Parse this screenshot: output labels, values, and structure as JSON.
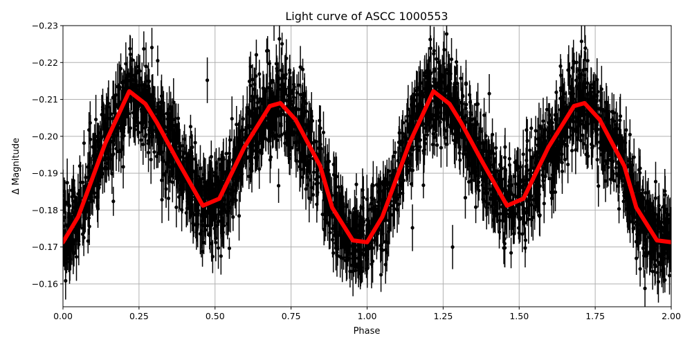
{
  "chart_data": {
    "type": "scatter",
    "title": "Light curve of ASCC 1000553",
    "xlabel": "Phase",
    "ylabel": "Δ Magnitude",
    "xlim": [
      0,
      2
    ],
    "ylim": [
      -0.1538,
      -0.23
    ],
    "y_inverted": true,
    "grid": true,
    "xticks": [
      "0.00",
      "0.25",
      "0.50",
      "0.75",
      "1.00",
      "1.25",
      "1.50",
      "1.75",
      "2.00"
    ],
    "xtick_values": [
      0,
      0.25,
      0.5,
      0.75,
      1,
      1.25,
      1.5,
      1.75,
      2
    ],
    "yticks": [
      "−0.23",
      "−0.22",
      "−0.21",
      "−0.20",
      "−0.19",
      "−0.18",
      "−0.17",
      "−0.16"
    ],
    "ytick_values": [
      -0.23,
      -0.22,
      -0.21,
      -0.2,
      -0.19,
      -0.18,
      -0.17,
      -0.16
    ],
    "model_curve": {
      "color": "#ff0000",
      "x": [
        0.0,
        0.05,
        0.139,
        0.218,
        0.271,
        0.309,
        0.378,
        0.46,
        0.514,
        0.596,
        0.68,
        0.715,
        0.765,
        0.846,
        0.885,
        0.953,
        1.0,
        1.05,
        1.139,
        1.218,
        1.271,
        1.309,
        1.378,
        1.46,
        1.514,
        1.596,
        1.68,
        1.715,
        1.765,
        1.846,
        1.885,
        1.953,
        2.0
      ],
      "y": [
        -0.1713,
        -0.1782,
        -0.1981,
        -0.2122,
        -0.2088,
        -0.2037,
        -0.1932,
        -0.1812,
        -0.1831,
        -0.197,
        -0.2082,
        -0.209,
        -0.2045,
        -0.1919,
        -0.1807,
        -0.1718,
        -0.1713,
        -0.1782,
        -0.1981,
        -0.2122,
        -0.2088,
        -0.2037,
        -0.1932,
        -0.1812,
        -0.1831,
        -0.197,
        -0.2082,
        -0.209,
        -0.2045,
        -0.1919,
        -0.1807,
        -0.1718,
        -0.1713
      ]
    },
    "observations": {
      "color": "#000000",
      "count": 3000,
      "scatter_sigma": 0.0055,
      "errorbar_halfwidth": 0.0045,
      "note_generated": true
    }
  }
}
